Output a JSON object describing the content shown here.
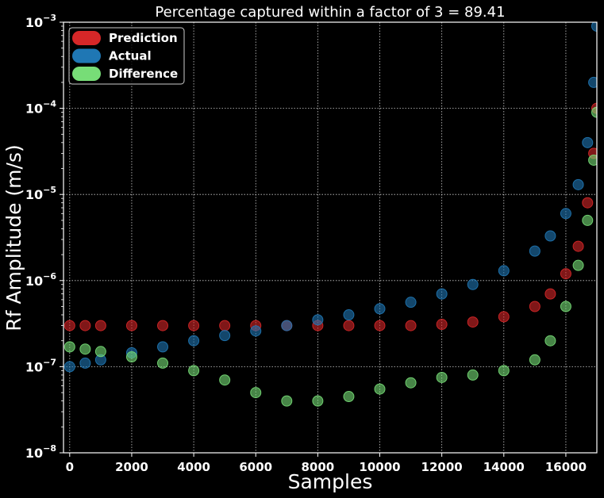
{
  "chart_data": {
    "type": "scatter",
    "title": "Percentage captured within a factor of 3 = 89.41",
    "xlabel": "Samples",
    "ylabel": "Rf Amplitude (m/s)",
    "xlim": [
      -200,
      17000
    ],
    "ylim": [
      1e-08,
      0.001
    ],
    "yscale": "log",
    "grid": true,
    "legend_position": "upper-left",
    "x_ticks": [
      0,
      2000,
      4000,
      6000,
      8000,
      10000,
      12000,
      14000,
      16000
    ],
    "x_tick_labels": [
      "0",
      "2000",
      "4000",
      "6000",
      "8000",
      "10000",
      "12000",
      "14000",
      "16000"
    ],
    "y_ticks": [
      1e-08,
      1e-07,
      1e-06,
      1e-05,
      0.0001,
      0.001
    ],
    "y_tick_labels": [
      {
        "base": "10",
        "exp": "−8"
      },
      {
        "base": "10",
        "exp": "−7"
      },
      {
        "base": "10",
        "exp": "−6"
      },
      {
        "base": "10",
        "exp": "−5"
      },
      {
        "base": "10",
        "exp": "−4"
      },
      {
        "base": "10",
        "exp": "−3"
      }
    ],
    "series": [
      {
        "name": "Prediction",
        "color": "#d62728",
        "x": [
          0,
          500,
          1000,
          2000,
          3000,
          4000,
          5000,
          6000,
          7000,
          8000,
          9000,
          10000,
          11000,
          12000,
          13000,
          14000,
          15000,
          15500,
          16000,
          16400,
          16700,
          16900,
          17000
        ],
        "y": [
          3e-07,
          3e-07,
          3e-07,
          3e-07,
          3e-07,
          3e-07,
          3e-07,
          3e-07,
          3e-07,
          3e-07,
          3e-07,
          3e-07,
          3e-07,
          3.1e-07,
          3.3e-07,
          3.8e-07,
          5e-07,
          7e-07,
          1.2e-06,
          2.5e-06,
          8e-06,
          3e-05,
          0.0001
        ]
      },
      {
        "name": "Actual",
        "color": "#1f77b4",
        "x": [
          0,
          500,
          1000,
          2000,
          3000,
          4000,
          5000,
          6000,
          7000,
          8000,
          9000,
          10000,
          11000,
          12000,
          13000,
          14000,
          15000,
          15500,
          16000,
          16400,
          16700,
          16900,
          17000
        ],
        "y": [
          1e-07,
          1.1e-07,
          1.2e-07,
          1.45e-07,
          1.7e-07,
          2e-07,
          2.3e-07,
          2.6e-07,
          3e-07,
          3.5e-07,
          4e-07,
          4.7e-07,
          5.6e-07,
          7e-07,
          9e-07,
          1.3e-06,
          2.2e-06,
          3.3e-06,
          6e-06,
          1.3e-05,
          4e-05,
          0.0002,
          0.0009
        ]
      },
      {
        "name": "Difference",
        "color": "#77dd77",
        "x": [
          0,
          500,
          1000,
          2000,
          3000,
          4000,
          5000,
          6000,
          7000,
          8000,
          9000,
          10000,
          11000,
          12000,
          13000,
          14000,
          15000,
          15500,
          16000,
          16400,
          16700,
          16900,
          17000
        ],
        "y": [
          1.7e-07,
          1.6e-07,
          1.5e-07,
          1.3e-07,
          1.1e-07,
          9e-08,
          7e-08,
          5e-08,
          4e-08,
          4e-08,
          4.5e-08,
          5.5e-08,
          6.5e-08,
          7.5e-08,
          8e-08,
          9e-08,
          1.2e-07,
          2e-07,
          5e-07,
          1.5e-06,
          5e-06,
          2.5e-05,
          9e-05
        ]
      }
    ]
  }
}
